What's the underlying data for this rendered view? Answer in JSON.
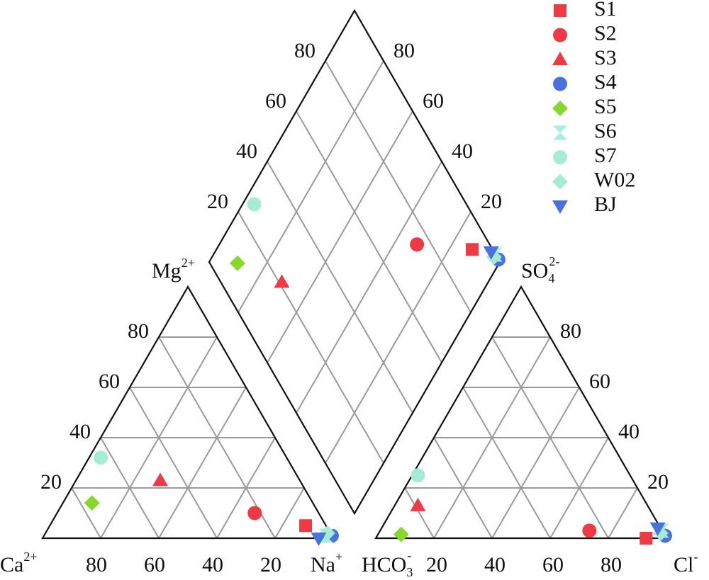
{
  "chart_data": {
    "type": "piper",
    "ticks": [
      20,
      40,
      60,
      80
    ],
    "labels": {
      "ca": {
        "text": "Ca",
        "sup": "2+"
      },
      "mg": {
        "text": "Mg",
        "sup": "2+"
      },
      "na": {
        "text": "Na",
        "sup": "+"
      },
      "hco3": {
        "text": "HCO",
        "sub": "3",
        "sup": "-"
      },
      "so4": {
        "text": "SO",
        "sub": "4",
        "sup": "2-"
      },
      "cl": {
        "text": "Cl",
        "sup": "-"
      }
    },
    "series": [
      {
        "name": "S1",
        "color": "#ee3a45",
        "marker": "square",
        "cation": [
          7,
          5,
          88
        ],
        "anion": [
          7,
          0,
          93
        ]
      },
      {
        "name": "S2",
        "color": "#ee3a45",
        "marker": "circle",
        "cation": [
          22,
          10,
          68
        ],
        "anion": [
          25,
          3,
          72
        ]
      },
      {
        "name": "S3",
        "color": "#ee3a45",
        "marker": "triangle",
        "cation": [
          48,
          23,
          29
        ],
        "anion": [
          79,
          13,
          8
        ]
      },
      {
        "name": "S4",
        "color": "#4a72dc",
        "marker": "circle",
        "cation": [
          0,
          1,
          99
        ],
        "anion": [
          0,
          1,
          99
        ]
      },
      {
        "name": "S5",
        "color": "#86d82a",
        "marker": "diamond",
        "cation": [
          76,
          14,
          10
        ],
        "anion": [
          90.5,
          1.5,
          8
        ]
      },
      {
        "name": "S6",
        "color": "#a6eedd",
        "marker": "hourglass",
        "cation": [
          2,
          1,
          97
        ],
        "anion": [
          0,
          3,
          97
        ]
      },
      {
        "name": "S7",
        "color": "#a6ecd4",
        "marker": "circle",
        "cation": [
          64,
          32,
          4
        ],
        "anion": [
          73,
          25,
          2
        ]
      },
      {
        "name": "W02",
        "color": "#a6ecd4",
        "marker": "diamond",
        "cation": [
          1,
          2,
          97
        ],
        "anion": [
          1,
          2,
          97
        ]
      },
      {
        "name": "BJ",
        "color": "#4a72dc",
        "marker": "invtriangle",
        "cation": [
          5,
          0,
          95
        ],
        "anion": [
          1,
          4,
          95
        ]
      }
    ]
  }
}
